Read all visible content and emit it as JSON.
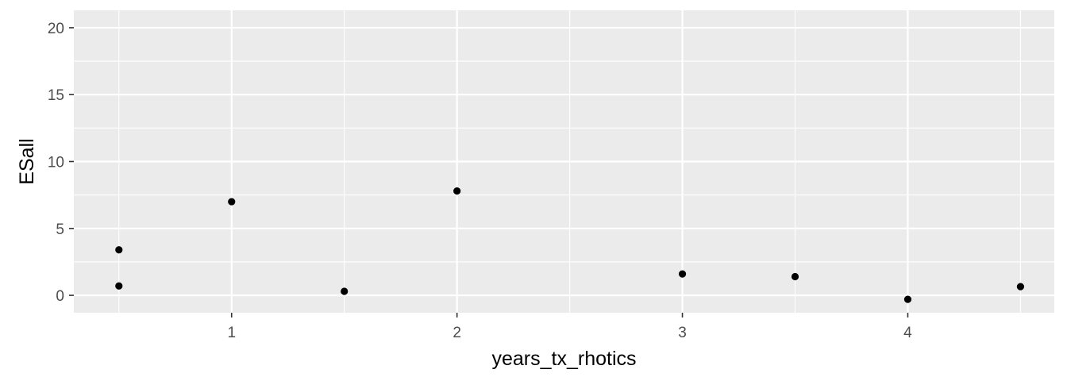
{
  "chart_data": {
    "type": "scatter",
    "title": "",
    "xlabel": "years_tx_rhotics",
    "ylabel": "ESall",
    "xlim": [
      0.3,
      4.65
    ],
    "ylim": [
      -1.3,
      21.3
    ],
    "x_ticks": [
      1,
      2,
      3,
      4
    ],
    "x_tick_labels": [
      "1",
      "2",
      "3",
      "4"
    ],
    "x_minor_ticks": [
      0.5,
      1.5,
      2.5,
      3.5,
      4.5
    ],
    "y_ticks": [
      0,
      5,
      10,
      15,
      20
    ],
    "y_tick_labels": [
      "0",
      "5",
      "10",
      "15",
      "20"
    ],
    "y_minor_ticks": [
      2.5,
      7.5,
      12.5,
      17.5
    ],
    "grid": true,
    "legend": "none",
    "colors": {
      "panel": "#ebebeb",
      "grid": "#ffffff",
      "point": "#000000",
      "tick_text": "#4d4d4d",
      "tick_mark": "#333333"
    },
    "points": [
      {
        "x": 0.5,
        "y": 3.4
      },
      {
        "x": 0.5,
        "y": 0.7
      },
      {
        "x": 1.0,
        "y": 7.0
      },
      {
        "x": 1.5,
        "y": 0.3
      },
      {
        "x": 2.0,
        "y": 7.8
      },
      {
        "x": 3.0,
        "y": 1.6
      },
      {
        "x": 3.5,
        "y": 1.4
      },
      {
        "x": 4.0,
        "y": -0.3
      },
      {
        "x": 4.5,
        "y": 0.65
      }
    ]
  }
}
